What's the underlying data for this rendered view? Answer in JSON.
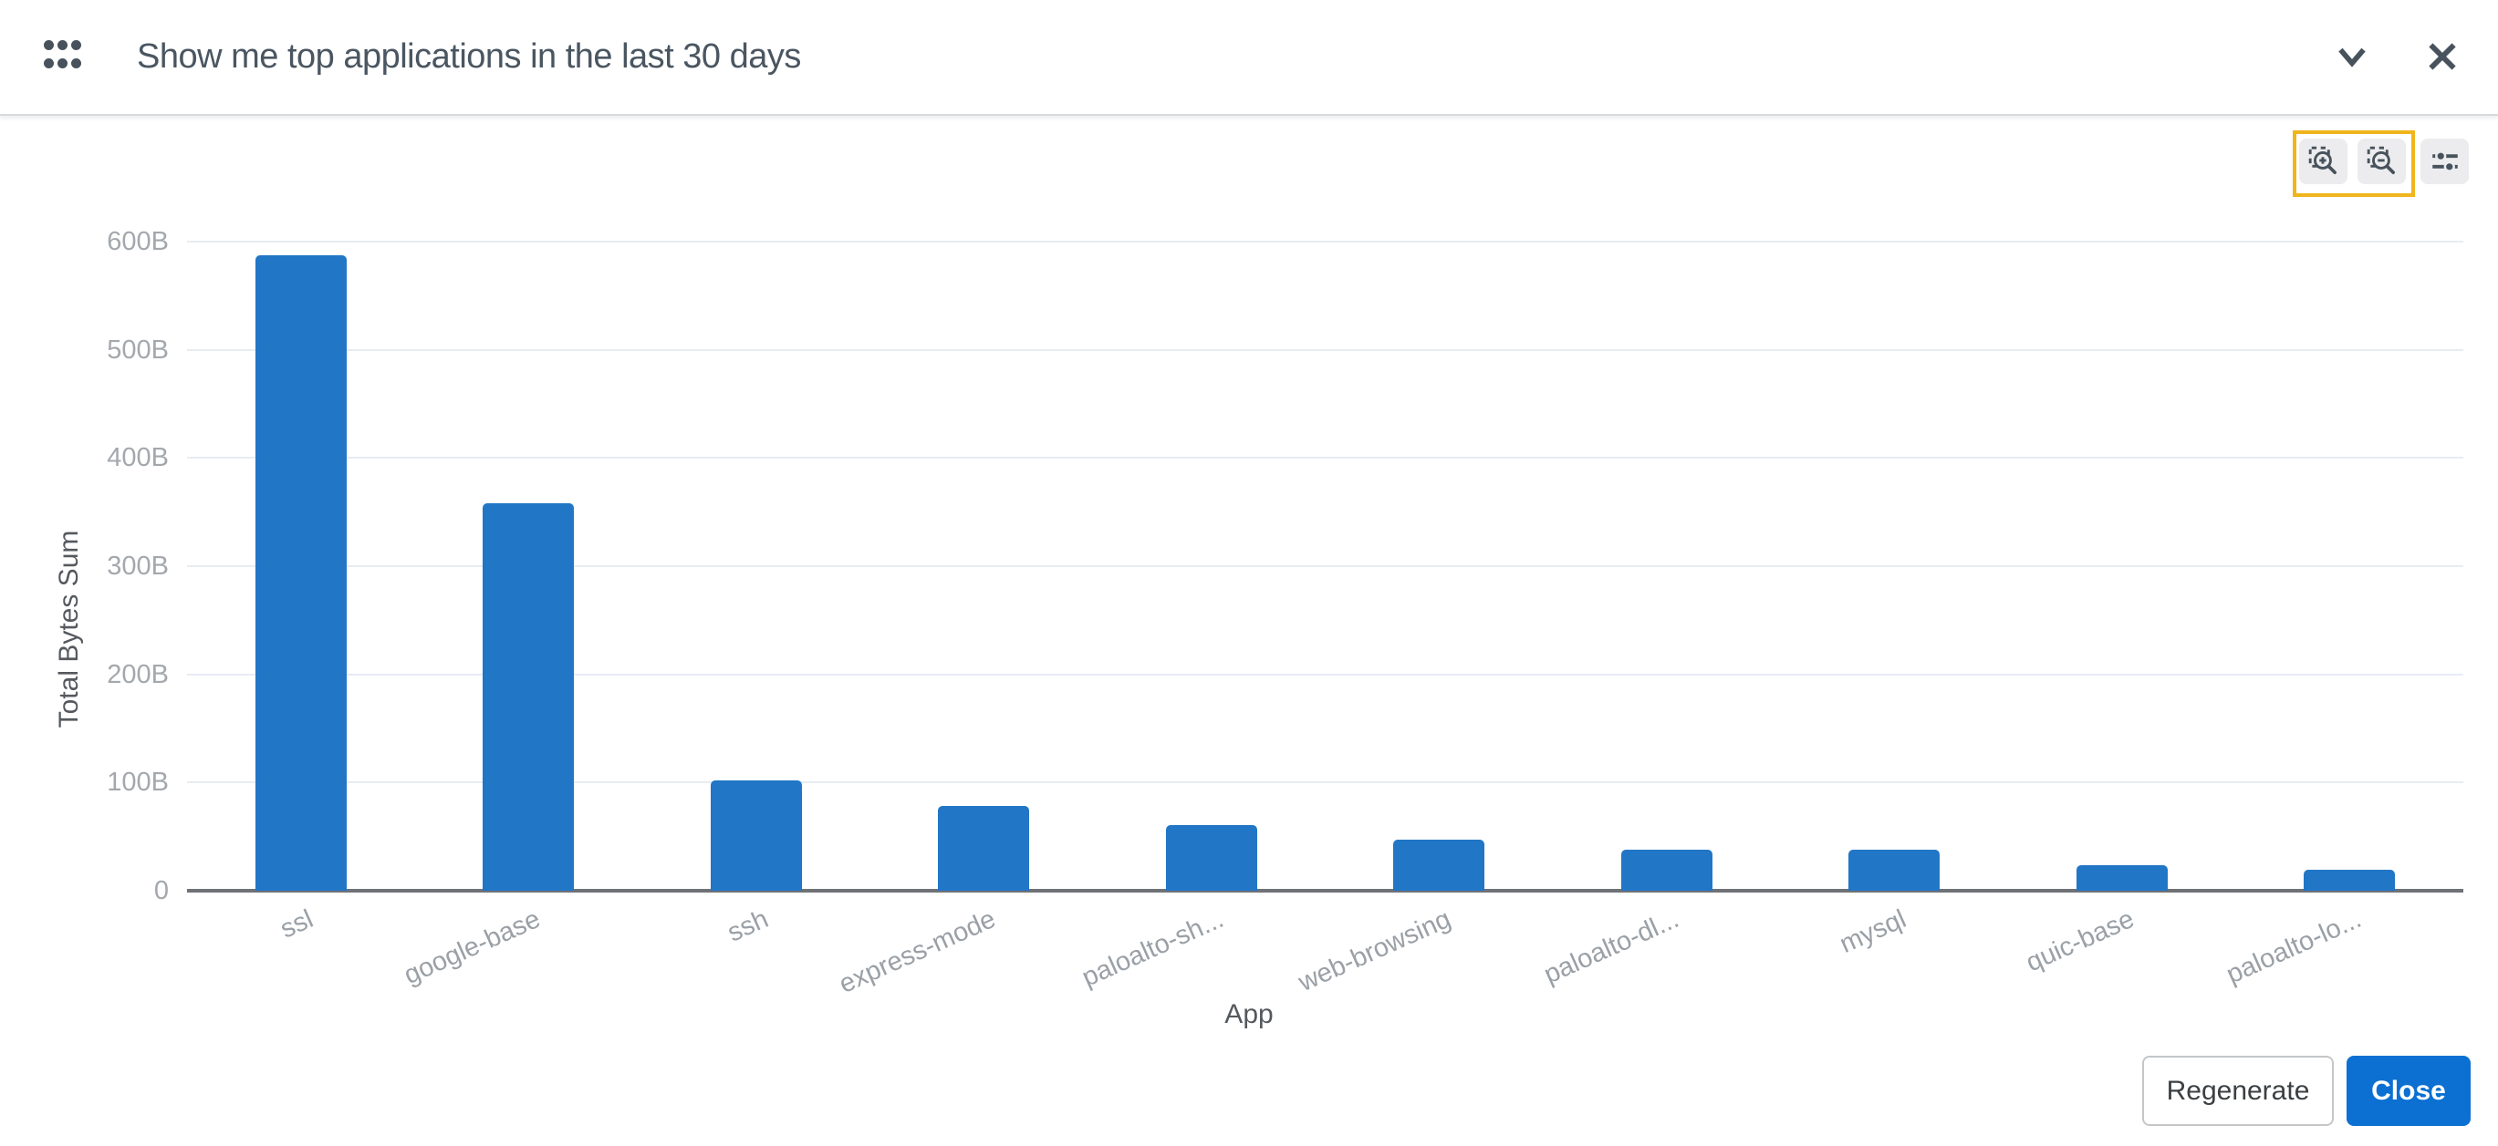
{
  "header": {
    "title": "Show me top applications in the last 30 days",
    "icons": [
      "grid-dots-icon",
      "chevron-down-icon",
      "close-icon"
    ]
  },
  "toolbar": {
    "buttons": [
      "zoom-in",
      "zoom-out",
      "chart-settings"
    ],
    "icons": [
      "zoom-in-selection-icon",
      "zoom-out-selection-icon",
      "sliders-icon"
    ],
    "highlight_color": "#f0b51d"
  },
  "chart_data": {
    "type": "bar",
    "title": "",
    "categories": [
      "ssl",
      "google-base",
      "ssh",
      "express-mode",
      "paloalto-sh...",
      "web-browsing",
      "paloalto-dl...",
      "mysql",
      "quic-base",
      "paloalto-lo..."
    ],
    "values": [
      587,
      358,
      102,
      78,
      61,
      47,
      38,
      38,
      24,
      19
    ],
    "unit": "B",
    "xlabel": "App",
    "ylabel": "Total Bytes Sum",
    "ylim": [
      0,
      600
    ],
    "ytick_labels": [
      "0",
      "100B",
      "200B",
      "300B",
      "400B",
      "500B",
      "600B"
    ],
    "grid": true,
    "legend_position": "none",
    "bar_color": "#2176c6"
  },
  "footer": {
    "regenerate_label": "Regenerate",
    "close_label": "Close"
  },
  "colors": {
    "bar_blue": "#2176c6",
    "close_button_blue": "#0b70d1",
    "highlight_yellow": "#f0b51d",
    "icon_slate": "#47525c",
    "axis_line": "#6f7276",
    "gridline": "#e8ecf3",
    "tick_label": "#9aa0a6",
    "title_text": "#4a5661"
  }
}
